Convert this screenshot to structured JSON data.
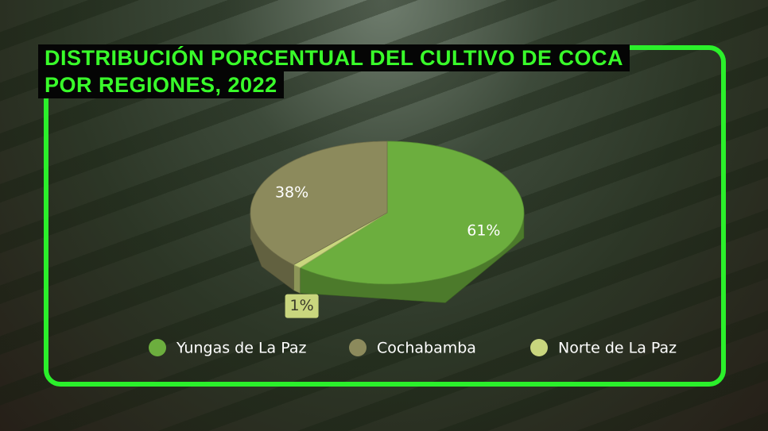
{
  "chart_data": {
    "type": "pie3d",
    "title": "DISTRIBUCIÓN PORCENTUAL DEL CULTIVO DE COCA POR REGIONES, 2022",
    "categories": [
      "Yungas de La Paz",
      "Cochabamba",
      "Norte de La Paz"
    ],
    "values": [
      61,
      38,
      1
    ],
    "value_labels": [
      "61%",
      "38%",
      "1%"
    ],
    "colors": [
      "#6cae3e",
      "#8c8a5c",
      "#c9d67e"
    ]
  }
}
